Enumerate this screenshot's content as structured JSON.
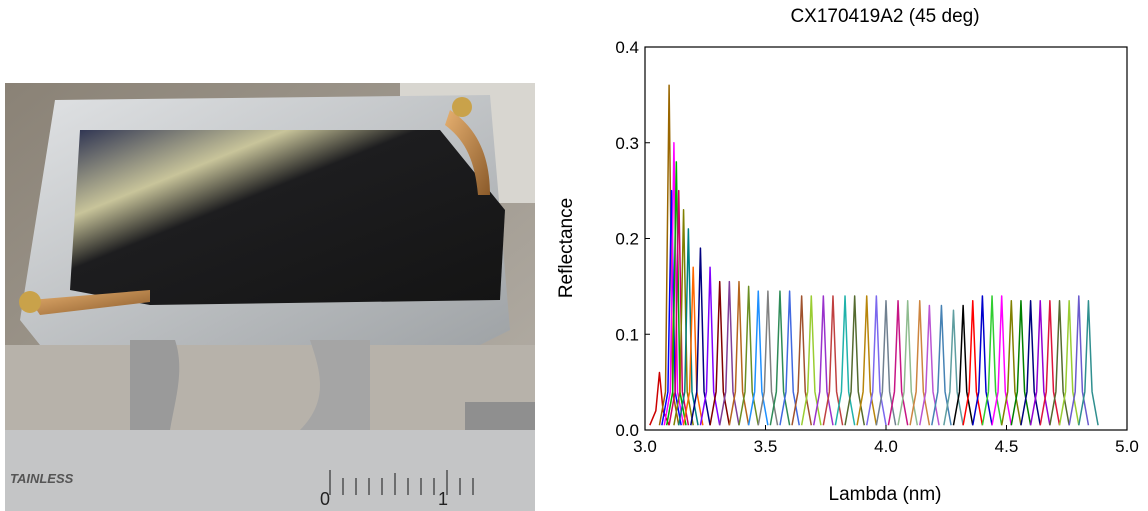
{
  "photo": {
    "labels": [
      "TAINLESS",
      "0",
      "1"
    ]
  },
  "chart_data": {
    "type": "line",
    "title": "CX170419A2 (45 deg)",
    "xlabel": "Lambda (nm)",
    "ylabel": "Reflectance",
    "xlim": [
      3,
      5
    ],
    "ylim": [
      0,
      0.4
    ],
    "xticks": [
      {
        "value": 3,
        "label": "3.0"
      },
      3.5,
      {
        "value": 4,
        "label": "4.0"
      },
      4.5,
      {
        "value": 5,
        "label": "5.0"
      }
    ],
    "yticks": [
      {
        "value": 0,
        "label": "0.0"
      },
      0.1,
      0.2,
      0.3,
      0.4
    ],
    "series": [
      {
        "color": "#cc0000",
        "x": [
          3.02,
          3.045,
          3.06,
          3.075,
          3.1
        ],
        "values": [
          0.005,
          0.02,
          0.06,
          0.02,
          0.005
        ]
      },
      {
        "color": "#996600",
        "x": [
          3.06,
          3.085,
          3.1,
          3.115,
          3.14
        ],
        "values": [
          0.005,
          0.04,
          0.36,
          0.04,
          0.005
        ]
      },
      {
        "color": "#0000ff",
        "x": [
          3.07,
          3.095,
          3.11,
          3.125,
          3.15
        ],
        "values": [
          0.005,
          0.04,
          0.25,
          0.04,
          0.005
        ]
      },
      {
        "color": "#ff00ff",
        "x": [
          3.08,
          3.105,
          3.12,
          3.135,
          3.16
        ],
        "values": [
          0.005,
          0.04,
          0.3,
          0.04,
          0.005
        ]
      },
      {
        "color": "#00aa00",
        "x": [
          3.09,
          3.115,
          3.13,
          3.145,
          3.17
        ],
        "values": [
          0.005,
          0.04,
          0.28,
          0.04,
          0.005
        ]
      },
      {
        "color": "#cc0066",
        "x": [
          3.1,
          3.125,
          3.14,
          3.155,
          3.18
        ],
        "values": [
          0.005,
          0.04,
          0.25,
          0.04,
          0.005
        ]
      },
      {
        "color": "#808000",
        "x": [
          3.12,
          3.145,
          3.16,
          3.175,
          3.2
        ],
        "values": [
          0.005,
          0.04,
          0.23,
          0.04,
          0.005
        ]
      },
      {
        "color": "#008080",
        "x": [
          3.14,
          3.165,
          3.18,
          3.195,
          3.22
        ],
        "values": [
          0.005,
          0.04,
          0.21,
          0.04,
          0.005
        ]
      },
      {
        "color": "#ff6600",
        "x": [
          3.16,
          3.185,
          3.2,
          3.215,
          3.24
        ],
        "values": [
          0.005,
          0.04,
          0.17,
          0.04,
          0.005
        ]
      },
      {
        "color": "#000080",
        "x": [
          3.19,
          3.215,
          3.23,
          3.245,
          3.27
        ],
        "values": [
          0.005,
          0.04,
          0.19,
          0.04,
          0.005
        ]
      },
      {
        "color": "#8000ff",
        "x": [
          3.23,
          3.255,
          3.27,
          3.285,
          3.31
        ],
        "values": [
          0.005,
          0.04,
          0.17,
          0.04,
          0.005
        ]
      },
      {
        "color": "#800000",
        "x": [
          3.27,
          3.295,
          3.31,
          3.325,
          3.35
        ],
        "values": [
          0.005,
          0.04,
          0.155,
          0.04,
          0.005
        ]
      },
      {
        "color": "#7f3f98",
        "x": [
          3.31,
          3.335,
          3.35,
          3.365,
          3.39
        ],
        "values": [
          0.005,
          0.04,
          0.155,
          0.04,
          0.005
        ]
      },
      {
        "color": "#b5651d",
        "x": [
          3.35,
          3.375,
          3.39,
          3.405,
          3.43
        ],
        "values": [
          0.005,
          0.04,
          0.155,
          0.04,
          0.005
        ]
      },
      {
        "color": "#6b8e23",
        "x": [
          3.39,
          3.415,
          3.43,
          3.445,
          3.47
        ],
        "values": [
          0.005,
          0.04,
          0.15,
          0.04,
          0.005
        ]
      },
      {
        "color": "#1e90ff",
        "x": [
          3.43,
          3.455,
          3.47,
          3.485,
          3.51
        ],
        "values": [
          0.005,
          0.04,
          0.145,
          0.04,
          0.005
        ]
      },
      {
        "color": "#808080",
        "x": [
          3.47,
          3.495,
          3.51,
          3.525,
          3.55
        ],
        "values": [
          0.005,
          0.04,
          0.145,
          0.04,
          0.005
        ]
      },
      {
        "color": "#2e8b57",
        "x": [
          3.52,
          3.545,
          3.56,
          3.575,
          3.6
        ],
        "values": [
          0.005,
          0.04,
          0.145,
          0.04,
          0.005
        ]
      },
      {
        "color": "#4169e1",
        "x": [
          3.56,
          3.585,
          3.6,
          3.615,
          3.64
        ],
        "values": [
          0.005,
          0.04,
          0.145,
          0.04,
          0.005
        ]
      },
      {
        "color": "#a0522d",
        "x": [
          3.61,
          3.635,
          3.65,
          3.665,
          3.69
        ],
        "values": [
          0.005,
          0.04,
          0.14,
          0.04,
          0.005
        ]
      },
      {
        "color": "#9acd32",
        "x": [
          3.65,
          3.675,
          3.69,
          3.705,
          3.73
        ],
        "values": [
          0.005,
          0.04,
          0.14,
          0.04,
          0.005
        ]
      },
      {
        "color": "#9932cc",
        "x": [
          3.7,
          3.725,
          3.74,
          3.755,
          3.78
        ],
        "values": [
          0.005,
          0.04,
          0.14,
          0.04,
          0.005
        ]
      },
      {
        "color": "#c04040",
        "x": [
          3.74,
          3.765,
          3.78,
          3.795,
          3.82
        ],
        "values": [
          0.005,
          0.04,
          0.14,
          0.04,
          0.005
        ]
      },
      {
        "color": "#20b2aa",
        "x": [
          3.79,
          3.815,
          3.83,
          3.845,
          3.87
        ],
        "values": [
          0.005,
          0.04,
          0.14,
          0.04,
          0.005
        ]
      },
      {
        "color": "#556b2f",
        "x": [
          3.83,
          3.855,
          3.87,
          3.885,
          3.91
        ],
        "values": [
          0.005,
          0.04,
          0.14,
          0.04,
          0.005
        ]
      },
      {
        "color": "#b8860b",
        "x": [
          3.88,
          3.905,
          3.92,
          3.935,
          3.96
        ],
        "values": [
          0.005,
          0.04,
          0.14,
          0.04,
          0.005
        ]
      },
      {
        "color": "#7b68ee",
        "x": [
          3.92,
          3.945,
          3.96,
          3.975,
          4
        ],
        "values": [
          0.005,
          0.04,
          0.14,
          0.04,
          0.005
        ]
      },
      {
        "color": "#708090",
        "x": [
          3.96,
          3.985,
          4,
          4.015,
          4.04
        ],
        "values": [
          0.005,
          0.04,
          0.135,
          0.04,
          0.005
        ]
      },
      {
        "color": "#c71585",
        "x": [
          4.01,
          4.035,
          4.05,
          4.065,
          4.09
        ],
        "values": [
          0.005,
          0.04,
          0.135,
          0.04,
          0.005
        ]
      },
      {
        "color": "#8fbc8f",
        "x": [
          4.05,
          4.075,
          4.09,
          4.105,
          4.13
        ],
        "values": [
          0.005,
          0.04,
          0.135,
          0.04,
          0.005
        ]
      },
      {
        "color": "#cd853f",
        "x": [
          4.1,
          4.125,
          4.14,
          4.155,
          4.18
        ],
        "values": [
          0.005,
          0.04,
          0.135,
          0.04,
          0.005
        ]
      },
      {
        "color": "#ba55d3",
        "x": [
          4.14,
          4.165,
          4.18,
          4.195,
          4.22
        ],
        "values": [
          0.005,
          0.04,
          0.13,
          0.04,
          0.005
        ]
      },
      {
        "color": "#4682b4",
        "x": [
          4.19,
          4.215,
          4.23,
          4.245,
          4.27
        ],
        "values": [
          0.005,
          0.04,
          0.13,
          0.04,
          0.005
        ]
      },
      {
        "color": "#5f9ea0",
        "x": [
          4.24,
          4.265,
          4.28,
          4.295,
          4.32
        ],
        "values": [
          0.005,
          0.04,
          0.125,
          0.04,
          0.005
        ]
      },
      {
        "color": "#000000",
        "x": [
          4.28,
          4.305,
          4.32,
          4.335,
          4.36
        ],
        "values": [
          0.005,
          0.04,
          0.13,
          0.04,
          0.005
        ]
      },
      {
        "color": "#ff0000",
        "x": [
          4.32,
          4.345,
          4.36,
          4.375,
          4.4
        ],
        "values": [
          0.005,
          0.04,
          0.135,
          0.04,
          0.005
        ]
      },
      {
        "color": "#0000cd",
        "x": [
          4.36,
          4.385,
          4.4,
          4.415,
          4.44
        ],
        "values": [
          0.005,
          0.04,
          0.14,
          0.04,
          0.005
        ]
      },
      {
        "color": "#32cd32",
        "x": [
          4.4,
          4.425,
          4.44,
          4.455,
          4.48
        ],
        "values": [
          0.005,
          0.04,
          0.14,
          0.04,
          0.005
        ]
      },
      {
        "color": "#ff00ff",
        "x": [
          4.44,
          4.465,
          4.48,
          4.495,
          4.52
        ],
        "values": [
          0.005,
          0.04,
          0.14,
          0.04,
          0.005
        ]
      },
      {
        "color": "#808000",
        "x": [
          4.48,
          4.505,
          4.52,
          4.535,
          4.56
        ],
        "values": [
          0.005,
          0.04,
          0.135,
          0.04,
          0.005
        ]
      },
      {
        "color": "#008000",
        "x": [
          4.52,
          4.545,
          4.56,
          4.575,
          4.6
        ],
        "values": [
          0.005,
          0.04,
          0.135,
          0.04,
          0.005
        ]
      },
      {
        "color": "#000080",
        "x": [
          4.56,
          4.585,
          4.6,
          4.615,
          4.64
        ],
        "values": [
          0.005,
          0.04,
          0.135,
          0.04,
          0.005
        ]
      },
      {
        "color": "#9400d3",
        "x": [
          4.6,
          4.625,
          4.64,
          4.655,
          4.68
        ],
        "values": [
          0.005,
          0.04,
          0.135,
          0.04,
          0.005
        ]
      },
      {
        "color": "#dc143c",
        "x": [
          4.64,
          4.665,
          4.68,
          4.695,
          4.72
        ],
        "values": [
          0.005,
          0.04,
          0.135,
          0.04,
          0.005
        ]
      },
      {
        "color": "#556b2f",
        "x": [
          4.68,
          4.705,
          4.72,
          4.735,
          4.76
        ],
        "values": [
          0.005,
          0.04,
          0.135,
          0.04,
          0.005
        ]
      },
      {
        "color": "#9acd32",
        "x": [
          4.72,
          4.745,
          4.76,
          4.775,
          4.8
        ],
        "values": [
          0.005,
          0.04,
          0.135,
          0.04,
          0.005
        ]
      },
      {
        "color": "#6a5acd",
        "x": [
          4.76,
          4.785,
          4.8,
          4.815,
          4.84
        ],
        "values": [
          0.005,
          0.04,
          0.14,
          0.04,
          0.005
        ]
      },
      {
        "color": "#2f8f8f",
        "x": [
          4.8,
          4.825,
          4.84,
          4.855,
          4.88
        ],
        "values": [
          0.005,
          0.04,
          0.135,
          0.04,
          0.005
        ]
      }
    ]
  }
}
